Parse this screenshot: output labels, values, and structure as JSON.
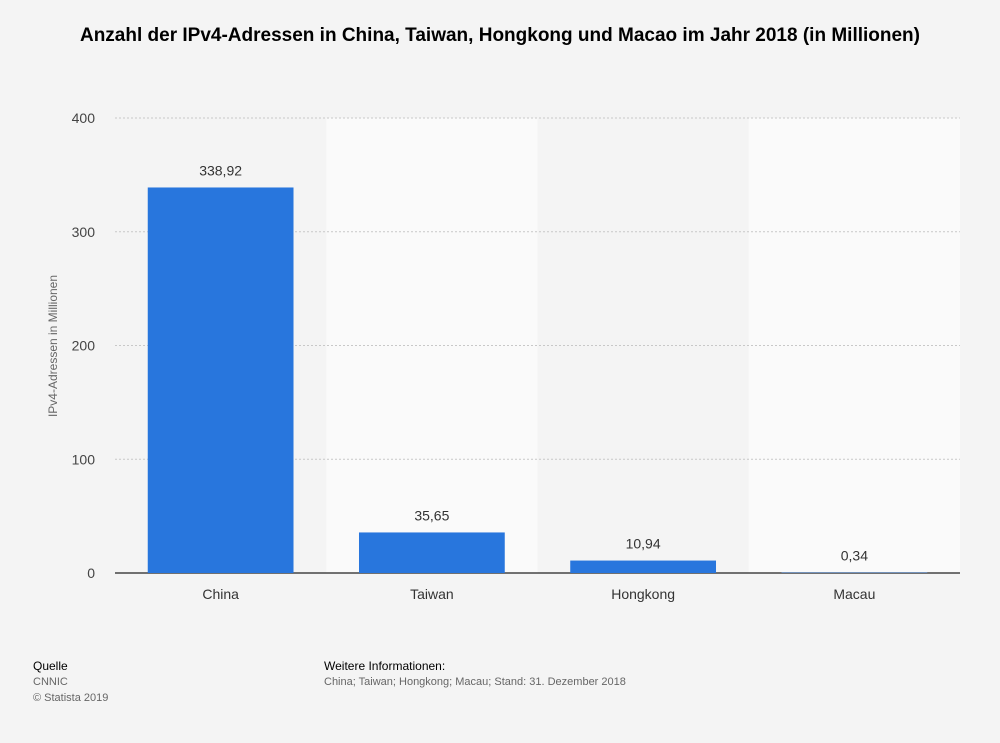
{
  "chart_data": {
    "type": "bar",
    "title": "Anzahl der IPv4-Adressen in China, Taiwan, Hongkong und Macao im Jahr 2018 (in Millionen)",
    "ylabel": "IPv4-Adressen in Millionen",
    "xlabel": "",
    "categories": [
      "China",
      "Taiwan",
      "Hongkong",
      "Macau"
    ],
    "values": [
      338.92,
      35.65,
      10.94,
      0.34
    ],
    "value_labels": [
      "338,92",
      "35,65",
      "10,94",
      "0,34"
    ],
    "ylim": [
      0,
      400
    ],
    "yticks": [
      0,
      100,
      200,
      300,
      400
    ],
    "grid": true,
    "legend": "none",
    "bar_color": "#2876dd"
  },
  "footer": {
    "source_heading": "Quelle",
    "source": "CNNIC",
    "copyright": "© Statista 2019",
    "info_heading": "Weitere Informationen:",
    "info": "China; Taiwan; Hongkong; Macau; Stand: 31. Dezember 2018"
  }
}
